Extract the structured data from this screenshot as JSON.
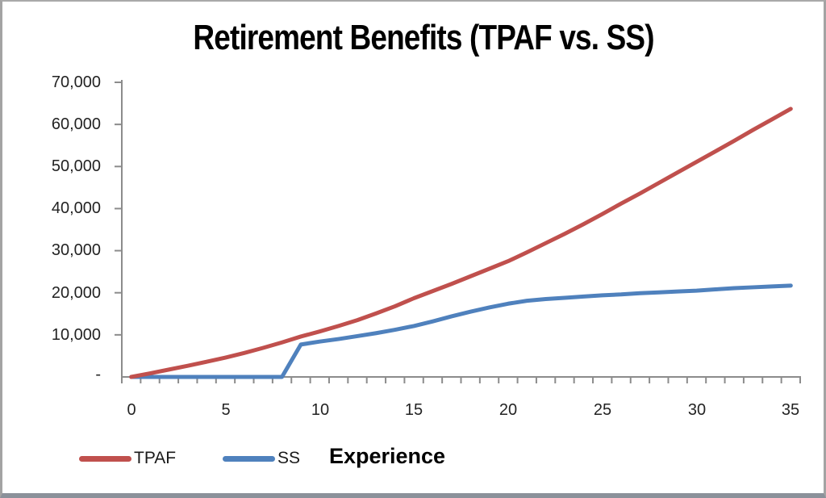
{
  "window": {
    "background": "#ffffff",
    "frame_color": "#a3a3a3",
    "bottom_edge_color": "#8b919a"
  },
  "chart_data": {
    "type": "line",
    "title": "Retirement Benefits (TPAF vs. SS)",
    "xlabel": "Experience",
    "ylabel": "",
    "xlim": [
      0,
      35
    ],
    "ylim": [
      0,
      70000
    ],
    "grid": false,
    "legend_position": "bottom-left",
    "axis_color": "#8c8c8c",
    "x": [
      0,
      1,
      2,
      3,
      4,
      5,
      6,
      7,
      8,
      9,
      10,
      11,
      12,
      13,
      14,
      15,
      16,
      17,
      18,
      19,
      20,
      21,
      22,
      23,
      24,
      25,
      26,
      27,
      28,
      29,
      30,
      31,
      32,
      33,
      34,
      35
    ],
    "series": [
      {
        "name": "TPAF",
        "color": "#c0504d",
        "values": [
          0,
          850,
          1750,
          2650,
          3600,
          4600,
          5700,
          6900,
          8200,
          9600,
          10800,
          12100,
          13500,
          15100,
          16800,
          18700,
          20400,
          22100,
          23900,
          25700,
          27500,
          29600,
          31800,
          34000,
          36300,
          38700,
          41200,
          43600,
          46100,
          48600,
          51100,
          53600,
          56100,
          58700,
          61200,
          63700
        ]
      },
      {
        "name": "SS",
        "color": "#4f81bd",
        "values": [
          0,
          0,
          0,
          0,
          0,
          0,
          0,
          0,
          0,
          7700,
          8400,
          9000,
          9700,
          10400,
          11200,
          12100,
          13200,
          14400,
          15500,
          16500,
          17400,
          18100,
          18500,
          18800,
          19100,
          19400,
          19600,
          19900,
          20100,
          20300,
          20500,
          20800,
          21100,
          21300,
          21500,
          21700
        ]
      }
    ],
    "xticks": [
      0,
      5,
      10,
      15,
      20,
      25,
      30,
      35
    ],
    "xtick_labels": [
      "0",
      "5",
      "10",
      "15",
      "20",
      "25",
      "30",
      "35"
    ],
    "ytick_labels": [
      "70,000",
      "60,000",
      "50,000",
      "40,000",
      "30,000",
      "20,000",
      "10,000",
      "-"
    ]
  }
}
